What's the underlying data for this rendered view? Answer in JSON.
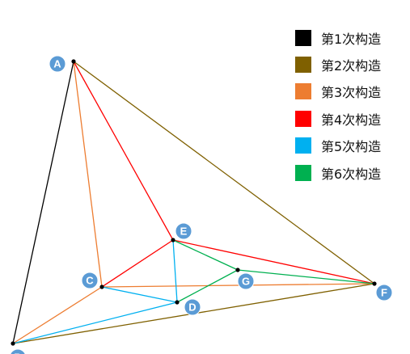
{
  "nodes": [
    {
      "id": "A",
      "label": "A"
    },
    {
      "id": "B",
      "label": "B"
    },
    {
      "id": "C",
      "label": "C"
    },
    {
      "id": "D",
      "label": "D"
    },
    {
      "id": "E",
      "label": "E"
    },
    {
      "id": "F",
      "label": "F"
    },
    {
      "id": "G",
      "label": "G"
    }
  ],
  "legend": [
    {
      "label": "第1次构造",
      "color": "#000000"
    },
    {
      "label": "第2次构造",
      "color": "#7f6000"
    },
    {
      "label": "第3次构造",
      "color": "#ed7d31"
    },
    {
      "label": "第4次构造",
      "color": "#ff0000"
    },
    {
      "label": "第5次构造",
      "color": "#00b0f0"
    },
    {
      "label": "第6次构造",
      "color": "#00b050"
    }
  ],
  "edges": [
    {
      "from": "A",
      "to": "B",
      "step": 1
    },
    {
      "from": "A",
      "to": "F",
      "step": 2
    },
    {
      "from": "B",
      "to": "F",
      "step": 2
    },
    {
      "from": "A",
      "to": "C",
      "step": 3
    },
    {
      "from": "B",
      "to": "C",
      "step": 3
    },
    {
      "from": "C",
      "to": "F",
      "step": 3
    },
    {
      "from": "A",
      "to": "E",
      "step": 4
    },
    {
      "from": "C",
      "to": "E",
      "step": 4
    },
    {
      "from": "E",
      "to": "F",
      "step": 4
    },
    {
      "from": "B",
      "to": "D",
      "step": 5
    },
    {
      "from": "C",
      "to": "D",
      "step": 5
    },
    {
      "from": "E",
      "to": "D",
      "step": 5
    },
    {
      "from": "E",
      "to": "G",
      "step": 6
    },
    {
      "from": "D",
      "to": "G",
      "step": 6
    },
    {
      "from": "G",
      "to": "F",
      "step": 6
    }
  ]
}
